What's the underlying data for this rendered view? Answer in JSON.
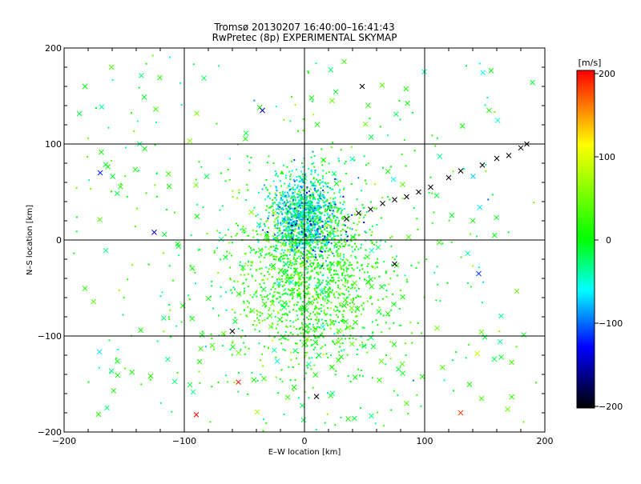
{
  "chart_data": {
    "type": "scatter",
    "title": "Tromsø 20130207 16:40:00–16:41:43",
    "subtitle": "RwPretec (8p) EXPERIMENTAL SKYMAP",
    "xlabel": "E–W location [km]",
    "ylabel": "N–S location [km]",
    "xlim": [
      -200,
      200
    ],
    "ylim": [
      -200,
      200
    ],
    "x_ticks": [
      "−200",
      "−100",
      "0",
      "100",
      "200"
    ],
    "y_ticks": [
      "−200",
      "−100",
      "0",
      "100",
      "200"
    ],
    "grid": "on (every 100 km)",
    "colorbar": {
      "unit_label": "[m/s]",
      "range": [
        -200,
        200
      ],
      "ticks": [
        "200",
        "100",
        "0",
        "−100",
        "−200"
      ],
      "colors": [
        "#ff0000",
        "#ffff00",
        "#00ff00",
        "#00ffff",
        "#0000ff",
        "#000000"
      ]
    },
    "markers": {
      "dense_cloud": "small dots, velocity mostly -60..+60 m/s, centred near (0, 20) km",
      "crosses": "x markers"
    },
    "highlight_points": [
      {
        "x": 185,
        "y": 100,
        "v": -200
      },
      {
        "x": 180,
        "y": 96,
        "v": -200
      },
      {
        "x": 170,
        "y": 88,
        "v": -200
      },
      {
        "x": 160,
        "y": 85,
        "v": -200
      },
      {
        "x": 148,
        "y": 78,
        "v": -200
      },
      {
        "x": 130,
        "y": 72,
        "v": -200
      },
      {
        "x": 120,
        "y": 65,
        "v": -200
      },
      {
        "x": 105,
        "y": 55,
        "v": -200
      },
      {
        "x": 95,
        "y": 50,
        "v": -200
      },
      {
        "x": 85,
        "y": 45,
        "v": -200
      },
      {
        "x": 75,
        "y": 42,
        "v": -200
      },
      {
        "x": 65,
        "y": 38,
        "v": -200
      },
      {
        "x": 55,
        "y": 32,
        "v": -200
      },
      {
        "x": 45,
        "y": 28,
        "v": -200
      },
      {
        "x": 35,
        "y": 22,
        "v": -200
      },
      {
        "x": -125,
        "y": 8,
        "v": -130
      },
      {
        "x": -170,
        "y": 70,
        "v": -120
      },
      {
        "x": -35,
        "y": 135,
        "v": -140
      },
      {
        "x": -90,
        "y": -182,
        "v": 200
      },
      {
        "x": -55,
        "y": -148,
        "v": 190
      },
      {
        "x": 145,
        "y": -35,
        "v": -110
      },
      {
        "x": 10,
        "y": -163,
        "v": -200
      },
      {
        "x": 48,
        "y": 160,
        "v": -200
      },
      {
        "x": -60,
        "y": -95,
        "v": -200
      },
      {
        "x": 75,
        "y": -25,
        "v": -200
      },
      {
        "x": 130,
        "y": -180,
        "v": 180
      }
    ]
  }
}
